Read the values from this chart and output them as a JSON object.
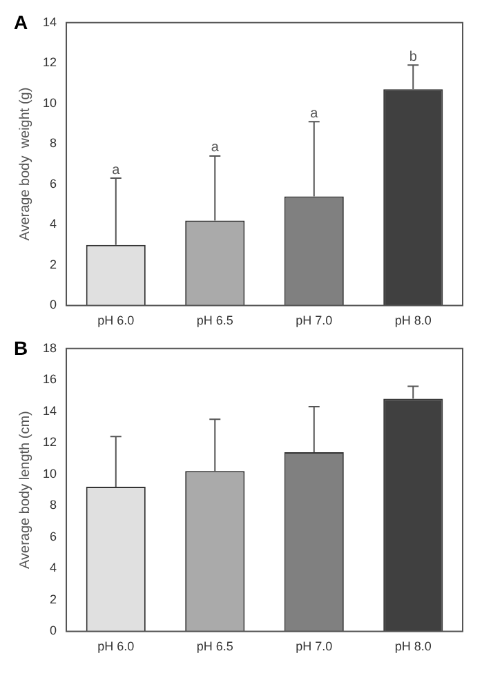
{
  "chart_data": [
    {
      "type": "bar",
      "title": "A",
      "ylabel": "Average body  weight (g)",
      "categories": [
        "pH 6.0",
        "pH 6.5",
        "pH 7.0",
        "pH 8.0"
      ],
      "values": [
        3.0,
        4.2,
        5.4,
        10.7
      ],
      "colors": [
        "#e0e0e0",
        "#aaaaaa",
        "#808080",
        "#404040"
      ],
      "errors": [
        [
          3.0,
          6.3
        ],
        [
          4.2,
          7.4
        ],
        [
          5.4,
          9.1
        ],
        [
          10.7,
          11.9
        ]
      ],
      "ylim": [
        0,
        14
      ],
      "yticks": [
        0,
        2,
        4,
        6,
        8,
        10,
        12,
        14
      ],
      "grid": false,
      "legend": false,
      "annotations": [
        {
          "text": "a",
          "x": "pH 6.0",
          "y": 6.3
        },
        {
          "text": "a",
          "x": "pH 6.5",
          "y": 7.4
        },
        {
          "text": "a",
          "x": "pH 7.0",
          "y": 9.1
        },
        {
          "text": "b",
          "x": "pH 8.0",
          "y": 11.9
        }
      ]
    },
    {
      "type": "bar",
      "title": "B",
      "ylabel": "Average body length (cm)",
      "categories": [
        "pH 6.0",
        "pH 6.5",
        "pH 7.0",
        "pH 8.0"
      ],
      "values": [
        9.2,
        10.2,
        11.4,
        14.8
      ],
      "colors": [
        "#e0e0e0",
        "#aaaaaa",
        "#808080",
        "#404040"
      ],
      "errors": [
        [
          9.2,
          12.4
        ],
        [
          10.2,
          13.5
        ],
        [
          11.4,
          14.3
        ],
        [
          14.8,
          15.6
        ]
      ],
      "ylim": [
        0,
        18
      ],
      "yticks": [
        0,
        2,
        4,
        6,
        8,
        10,
        12,
        14,
        16,
        18
      ],
      "grid": false,
      "legend": false
    }
  ]
}
